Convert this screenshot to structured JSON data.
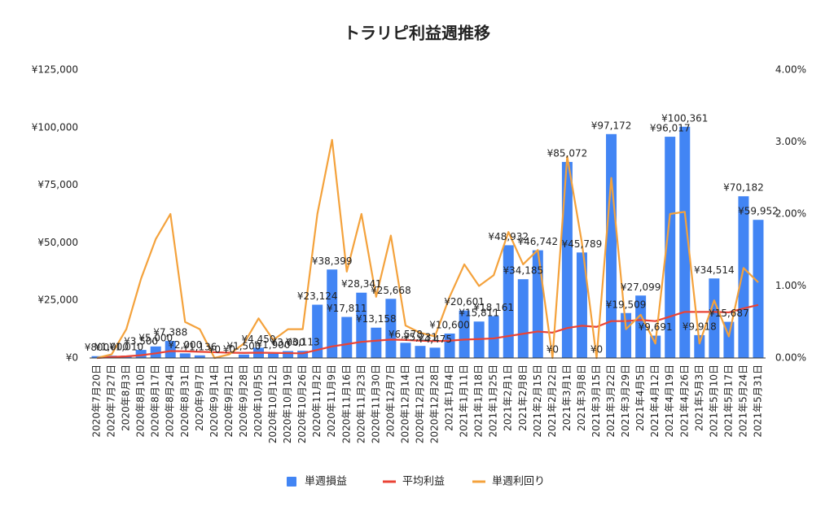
{
  "chart_data": {
    "type": "bar",
    "title": "トラリピ利益週推移",
    "categories": [
      "2020年7月20日",
      "2020年7月27日",
      "2020年8月3日",
      "2020年8月10日",
      "2020年8月17日",
      "2020年8月24日",
      "2020年8月31日",
      "2020年9月7日",
      "2020年9月14日",
      "2020年9月21日",
      "2020年9月28日",
      "2020年10月5日",
      "2020年10月12日",
      "2020年10月19日",
      "2020年10月26日",
      "2020年11月2日",
      "2020年11月9日",
      "2020年11月16日",
      "2020年11月23日",
      "2020年11月30日",
      "2020年12月7日",
      "2020年12月14日",
      "2020年12月21日",
      "2020年12月28日",
      "2021年1月4日",
      "2021年1月11日",
      "2021年1月18日",
      "2021年1月25日",
      "2021年2月1日",
      "2021年2月8日",
      "2021年2月15日",
      "2021年2月22日",
      "2021年3月1日",
      "2021年3月8日",
      "2021年3月15日",
      "2021年3月22日",
      "2021年3月29日",
      "2021年4月5日",
      "2021年4月12日",
      "2021年4月19日",
      "2021年4月26日",
      "2021年5月3日",
      "2021年5月10日",
      "2021年5月17日",
      "2021年5月24日",
      "2021年5月31日"
    ],
    "series": [
      {
        "name": "単週損益",
        "type": "bar",
        "color": "#4285f4",
        "values": [
          800,
          1000,
          1010,
          3500,
          5000,
          7388,
          2000,
          1136,
          0,
          0,
          1500,
          4450,
          1900,
          3000,
          3113,
          23124,
          38399,
          17811,
          28341,
          13158,
          25668,
          6578,
          5231,
          4475,
          10600,
          20601,
          15811,
          18161,
          48932,
          34185,
          46742,
          0,
          85072,
          45789,
          0,
          97172,
          19509,
          27099,
          9691,
          96017,
          100361,
          9918,
          34514,
          15687,
          70182,
          59952
        ],
        "value_labels": [
          "¥800",
          "¥1,000",
          "¥1,010",
          "¥3,500",
          "¥5,000",
          "¥7,388",
          "¥2,000",
          "¥1,136",
          "¥0",
          "¥0",
          "¥1,500",
          "¥4,450",
          "¥1,900",
          "¥3,000",
          "¥3,113",
          "¥23,124",
          "¥38,399",
          "¥17,811",
          "¥28,341",
          "¥13,158",
          "¥25,668",
          "¥6,578",
          "¥5,231",
          "¥4,475",
          "¥10,600",
          "¥20,601",
          "¥15,811",
          "¥18,161",
          "¥48,932",
          "¥34,185",
          "¥46,742",
          "¥0",
          "¥85,072",
          "¥45,789",
          "¥0",
          "¥97,172",
          "¥19,509",
          "¥27,099",
          "¥9,691",
          "¥96,017",
          "¥100,361",
          "¥9,918",
          "¥34,514",
          "¥15,687",
          "¥70,182",
          "¥59,952"
        ]
      },
      {
        "name": "平均利益",
        "type": "line",
        "color": "#ea4335",
        "values": [
          0,
          400,
          700,
          1200,
          2000,
          3000,
          2900,
          2700,
          2500,
          2300,
          2200,
          2300,
          2200,
          2100,
          2000,
          3500,
          5000,
          6000,
          7000,
          7500,
          8000,
          7800,
          7500,
          7300,
          7500,
          8000,
          8200,
          8500,
          9500,
          10500,
          11500,
          11000,
          13000,
          14000,
          13500,
          16000,
          16000,
          16500,
          16000,
          18000,
          20000,
          20000,
          20000,
          19800,
          21500,
          23000
        ]
      },
      {
        "name": "単週利回り",
        "type": "line",
        "axis": "y2",
        "color": "#f4a23c",
        "values": [
          0,
          0.05,
          0.4,
          1.1,
          1.65,
          2.0,
          0.5,
          0.4,
          0,
          0.05,
          0.2,
          0.55,
          0.25,
          0.4,
          0.4,
          2.0,
          3.03,
          1.2,
          2.0,
          0.85,
          1.7,
          0.45,
          0.35,
          0.3,
          0.85,
          1.3,
          1.0,
          1.15,
          1.75,
          1.3,
          1.5,
          0,
          2.8,
          1.6,
          0,
          2.5,
          0.4,
          0.6,
          0.2,
          2.0,
          2.03,
          0.2,
          0.8,
          0.3,
          1.25,
          1.05
        ]
      }
    ],
    "ylim": [
      0,
      125000
    ],
    "yticks": [
      {
        "value": 0,
        "label": "¥0"
      },
      {
        "value": 25000,
        "label": "¥25,000"
      },
      {
        "value": 50000,
        "label": "¥50,000"
      },
      {
        "value": 75000,
        "label": "¥75,000"
      },
      {
        "value": 100000,
        "label": "¥100,000"
      },
      {
        "value": 125000,
        "label": "¥125,000"
      }
    ],
    "y2lim": [
      0,
      4
    ],
    "y2ticks": [
      {
        "value": 0,
        "label": "0.00%"
      },
      {
        "value": 1,
        "label": "1.00%"
      },
      {
        "value": 2,
        "label": "2.00%"
      },
      {
        "value": 3,
        "label": "3.00%"
      },
      {
        "value": 4,
        "label": "4.00%"
      }
    ],
    "grid": false,
    "legend": "bottom"
  }
}
